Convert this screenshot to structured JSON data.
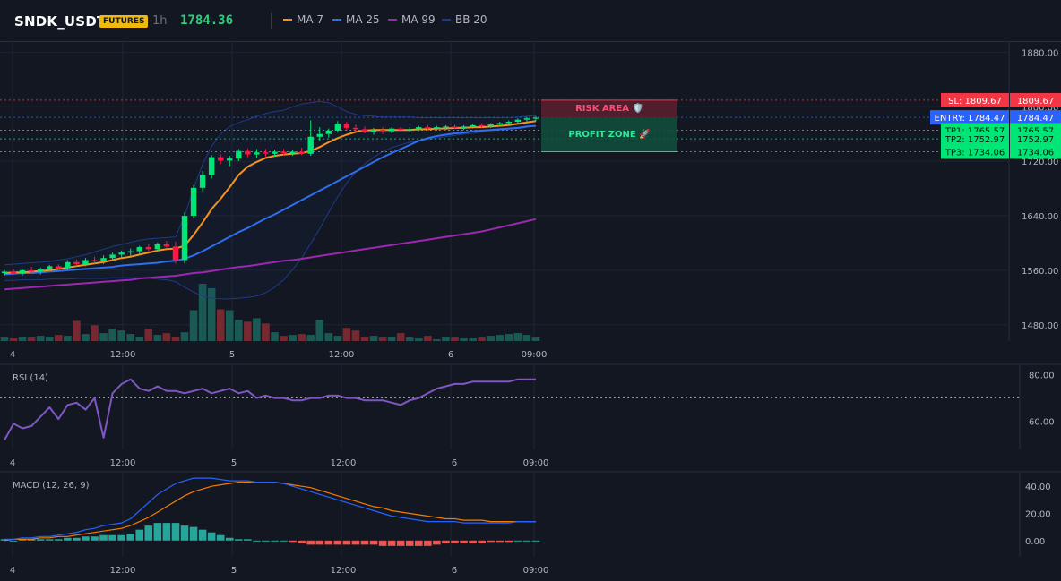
{
  "header": {
    "symbol": "SNDK_USDT",
    "badge": "FUTURES",
    "interval": "1h",
    "last_price": "1784.36",
    "legend": [
      {
        "label": "MA 7",
        "color": "#f7931a"
      },
      {
        "label": "MA 25",
        "color": "#2f6fed"
      },
      {
        "label": "MA 99",
        "color": "#9c27b0"
      },
      {
        "label": "BB 20",
        "color": "#1e3a8a"
      }
    ]
  },
  "zones": {
    "risk": "RISK AREA 🛡️",
    "profit": "PROFIT ZONE 🚀"
  },
  "levels": [
    {
      "key": "sl",
      "label": "SL: 1809.67",
      "value": 1809.67,
      "value_label": "1809.67",
      "color": "#f23645",
      "text": "#ffffff"
    },
    {
      "key": "entry",
      "label": "ENTRY: 1784.47",
      "value": 1784.47,
      "value_label": "1784.47",
      "color": "#2962ff",
      "text": "#ffffff"
    },
    {
      "key": "tp1",
      "label": "TP1: 1765.57",
      "value": 1765.57,
      "value_label": "1765.57",
      "color": "#00e676",
      "text": "#0b1a10"
    },
    {
      "key": "tp2",
      "label": "TP2: 1752.97",
      "value": 1752.97,
      "value_label": "1752.97",
      "color": "#00e676",
      "text": "#0b1a10"
    },
    {
      "key": "tp3",
      "label": "TP3: 1734.06",
      "value": 1734.06,
      "value_label": "1734.06",
      "color": "#00e676",
      "text": "#0b1a10"
    }
  ],
  "colors": {
    "up": "#26a69a",
    "down": "#ef5350",
    "up_bright": "#00e676",
    "down_bright": "#ff1744",
    "rsi": "#7e57c2",
    "macd": "#2962ff",
    "signal": "#f57c00"
  },
  "chart_data": [
    {
      "type": "candlestick",
      "name": "price",
      "x_ticks": [
        "4",
        "12:00",
        "5",
        "12:00",
        "6",
        "09:00"
      ],
      "y_ticks": [
        "1880.00",
        "1800.00",
        "1720.00",
        "1640.00",
        "1560.00",
        "1480.00"
      ],
      "ylim": [
        1460,
        1895
      ],
      "candles": [
        [
          1556,
          1560,
          1552,
          1558
        ],
        [
          1558,
          1562,
          1553,
          1555
        ],
        [
          1555,
          1562,
          1552,
          1560
        ],
        [
          1560,
          1565,
          1556,
          1558
        ],
        [
          1558,
          1564,
          1554,
          1562
        ],
        [
          1562,
          1568,
          1559,
          1566
        ],
        [
          1566,
          1569,
          1560,
          1563
        ],
        [
          1563,
          1575,
          1561,
          1572
        ],
        [
          1572,
          1576,
          1566,
          1569
        ],
        [
          1569,
          1578,
          1566,
          1575
        ],
        [
          1575,
          1580,
          1570,
          1573
        ],
        [
          1573,
          1582,
          1569,
          1578
        ],
        [
          1578,
          1586,
          1574,
          1583
        ],
        [
          1583,
          1589,
          1578,
          1586
        ],
        [
          1586,
          1592,
          1580,
          1588
        ],
        [
          1588,
          1596,
          1583,
          1594
        ],
        [
          1594,
          1598,
          1587,
          1591
        ],
        [
          1591,
          1601,
          1588,
          1598
        ],
        [
          1598,
          1603,
          1592,
          1595
        ],
        [
          1595,
          1602,
          1570,
          1575
        ],
        [
          1575,
          1645,
          1570,
          1640
        ],
        [
          1640,
          1685,
          1636,
          1681
        ],
        [
          1681,
          1706,
          1676,
          1700
        ],
        [
          1700,
          1729,
          1695,
          1726
        ],
        [
          1726,
          1730,
          1716,
          1721
        ],
        [
          1721,
          1728,
          1713,
          1724
        ],
        [
          1724,
          1738,
          1720,
          1735
        ],
        [
          1735,
          1739,
          1726,
          1730
        ],
        [
          1730,
          1738,
          1725,
          1733
        ],
        [
          1733,
          1738,
          1727,
          1731
        ],
        [
          1731,
          1737,
          1727,
          1734
        ],
        [
          1734,
          1738,
          1729,
          1732
        ],
        [
          1732,
          1736,
          1728,
          1734
        ],
        [
          1734,
          1740,
          1729,
          1731
        ],
        [
          1731,
          1780,
          1728,
          1756
        ],
        [
          1756,
          1770,
          1750,
          1760
        ],
        [
          1760,
          1768,
          1755,
          1765
        ],
        [
          1765,
          1779,
          1762,
          1775
        ],
        [
          1775,
          1778,
          1765,
          1769
        ],
        [
          1769,
          1774,
          1764,
          1767
        ],
        [
          1767,
          1771,
          1761,
          1763
        ],
        [
          1763,
          1769,
          1759,
          1766
        ],
        [
          1766,
          1770,
          1760,
          1764
        ],
        [
          1764,
          1770,
          1761,
          1768
        ],
        [
          1768,
          1771,
          1763,
          1766
        ],
        [
          1766,
          1770,
          1762,
          1767
        ],
        [
          1767,
          1772,
          1764,
          1770
        ],
        [
          1770,
          1773,
          1765,
          1768
        ],
        [
          1768,
          1772,
          1765,
          1770
        ],
        [
          1770,
          1773,
          1766,
          1771
        ],
        [
          1771,
          1774,
          1767,
          1769
        ],
        [
          1769,
          1773,
          1766,
          1771
        ],
        [
          1771,
          1775,
          1768,
          1773
        ],
        [
          1773,
          1776,
          1769,
          1772
        ],
        [
          1772,
          1776,
          1769,
          1774
        ],
        [
          1774,
          1778,
          1771,
          1776
        ],
        [
          1776,
          1780,
          1772,
          1778
        ],
        [
          1778,
          1783,
          1775,
          1781
        ],
        [
          1781,
          1785,
          1777,
          1783
        ],
        [
          1783,
          1786,
          1779,
          1784
        ]
      ],
      "volume": [
        4,
        3,
        5,
        4,
        6,
        5,
        7,
        6,
        23,
        8,
        18,
        9,
        14,
        12,
        8,
        5,
        14,
        7,
        9,
        5,
        10,
        35,
        65,
        60,
        36,
        35,
        24,
        22,
        26,
        20,
        10,
        6,
        7,
        8,
        7,
        24,
        9,
        6,
        15,
        12,
        5,
        6,
        4,
        5,
        9,
        4,
        3,
        6,
        2,
        5,
        4,
        3,
        3,
        4,
        6,
        7,
        8,
        9,
        7,
        4
      ],
      "ma7": [
        1556,
        1557,
        1557,
        1558,
        1559,
        1560,
        1562,
        1564,
        1566,
        1568,
        1570,
        1572,
        1575,
        1578,
        1580,
        1583,
        1586,
        1589,
        1591,
        1592,
        1596,
        1612,
        1630,
        1650,
        1665,
        1682,
        1700,
        1712,
        1719,
        1725,
        1728,
        1730,
        1731,
        1732,
        1735,
        1741,
        1748,
        1754,
        1759,
        1763,
        1765,
        1766,
        1766,
        1766,
        1766,
        1766,
        1767,
        1767,
        1768,
        1768,
        1769,
        1769,
        1770,
        1770,
        1771,
        1772,
        1773,
        1775,
        1777,
        1779
      ],
      "ma25": [
        1554,
        1555,
        1556,
        1556,
        1557,
        1558,
        1559,
        1560,
        1561,
        1562,
        1563,
        1564,
        1565,
        1567,
        1568,
        1569,
        1570,
        1571,
        1573,
        1574,
        1577,
        1582,
        1588,
        1595,
        1602,
        1609,
        1616,
        1622,
        1629,
        1636,
        1642,
        1649,
        1656,
        1663,
        1670,
        1677,
        1684,
        1691,
        1698,
        1705,
        1712,
        1719,
        1726,
        1732,
        1738,
        1744,
        1750,
        1754,
        1757,
        1759,
        1761,
        1762,
        1764,
        1765,
        1766,
        1767,
        1768,
        1769,
        1771,
        1772
      ],
      "ma99": [
        1532,
        1533,
        1534,
        1535,
        1536,
        1537,
        1538,
        1539,
        1540,
        1541,
        1542,
        1543,
        1544,
        1545,
        1546,
        1548,
        1549,
        1550,
        1551,
        1552,
        1554,
        1556,
        1557,
        1559,
        1561,
        1563,
        1565,
        1566,
        1568,
        1570,
        1572,
        1574,
        1575,
        1577,
        1579,
        1581,
        1583,
        1585,
        1587,
        1589,
        1591,
        1593,
        1595,
        1597,
        1599,
        1601,
        1603,
        1605,
        1607,
        1609,
        1611,
        1613,
        1615,
        1617,
        1620,
        1623,
        1626,
        1629,
        1632,
        1635
      ],
      "bb_upper": [
        1568,
        1569,
        1570,
        1571,
        1572,
        1573,
        1575,
        1577,
        1580,
        1583,
        1587,
        1591,
        1595,
        1598,
        1601,
        1604,
        1606,
        1607,
        1608,
        1609,
        1640,
        1680,
        1716,
        1742,
        1760,
        1771,
        1777,
        1781,
        1786,
        1790,
        1793,
        1795,
        1800,
        1804,
        1806,
        1808,
        1806,
        1800,
        1793,
        1789,
        1787,
        1786,
        1785,
        1785,
        1785,
        1785,
        1784,
        1784,
        1784,
        1784,
        1784,
        1784,
        1784,
        1784,
        1784,
        1784,
        1784,
        1785,
        1786,
        1787
      ],
      "bb_lower": [
        1545,
        1545,
        1546,
        1546,
        1546,
        1547,
        1547,
        1547,
        1548,
        1548,
        1548,
        1548,
        1549,
        1549,
        1549,
        1549,
        1548,
        1547,
        1546,
        1543,
        1535,
        1528,
        1522,
        1519,
        1518,
        1518,
        1519,
        1520,
        1522,
        1527,
        1535,
        1546,
        1561,
        1578,
        1599,
        1621,
        1645,
        1668,
        1688,
        1704,
        1716,
        1726,
        1734,
        1740,
        1744,
        1748,
        1750,
        1752,
        1754,
        1756,
        1758,
        1760,
        1761,
        1763,
        1765,
        1766,
        1767,
        1768,
        1770,
        1772
      ]
    },
    {
      "type": "line",
      "name": "RSI (14)",
      "y_ticks": [
        "80.00",
        "60.00"
      ],
      "ylim": [
        48,
        84
      ],
      "reference_line": 70,
      "values": [
        52,
        59,
        57,
        58,
        62,
        66,
        61,
        67,
        68,
        65,
        70,
        53,
        72,
        76,
        78,
        74,
        73,
        75,
        73,
        73,
        72,
        73,
        74,
        72,
        73,
        74,
        72,
        73,
        70,
        71,
        70,
        70,
        69,
        69,
        70,
        70,
        71,
        71,
        70,
        70,
        69,
        69,
        69,
        68,
        67,
        69,
        70,
        72,
        74,
        75,
        76,
        76,
        77,
        77,
        77,
        77,
        77,
        78,
        78,
        78
      ],
      "x_ticks": [
        "4",
        "12:00",
        "5",
        "12:00",
        "6",
        "09:00"
      ]
    },
    {
      "type": "bar+line",
      "name": "MACD (12, 26, 9)",
      "y_ticks": [
        "40.00",
        "20.00",
        "0.00"
      ],
      "ylim": [
        -12,
        50
      ],
      "macd": [
        1,
        1,
        2,
        2,
        3,
        3,
        4,
        5,
        6,
        8,
        9,
        11,
        12,
        13,
        16,
        22,
        28,
        34,
        38,
        42,
        44,
        46,
        46,
        46,
        45,
        44,
        44,
        44,
        43,
        43,
        43,
        42,
        40,
        38,
        36,
        34,
        32,
        30,
        28,
        26,
        24,
        22,
        20,
        18,
        17,
        16,
        15,
        14,
        14,
        14,
        14,
        13,
        13,
        13,
        13,
        13,
        13,
        14,
        14,
        14
      ],
      "signal": [
        0,
        1,
        1,
        1,
        2,
        2,
        3,
        3,
        4,
        5,
        6,
        7,
        8,
        9,
        11,
        14,
        17,
        21,
        25,
        29,
        33,
        36,
        38,
        40,
        41,
        42,
        43,
        43,
        43,
        43,
        43,
        42,
        41,
        40,
        39,
        37,
        35,
        33,
        31,
        29,
        27,
        25,
        24,
        22,
        21,
        20,
        19,
        18,
        17,
        16,
        16,
        15,
        15,
        15,
        14,
        14,
        14,
        14,
        14,
        14
      ],
      "histogram": [
        1,
        0,
        1,
        1,
        1,
        1,
        1,
        2,
        2,
        3,
        3,
        4,
        4,
        4,
        5,
        8,
        11,
        13,
        13,
        13,
        11,
        10,
        8,
        6,
        4,
        2,
        1,
        1,
        0,
        0,
        0,
        0,
        -1,
        -2,
        -3,
        -3,
        -3,
        -3,
        -3,
        -3,
        -3,
        -3,
        -4,
        -4,
        -4,
        -4,
        -4,
        -4,
        -3,
        -2,
        -2,
        -2,
        -2,
        -2,
        -1,
        -1,
        -1,
        0,
        0,
        0
      ],
      "x_ticks": [
        "4",
        "12:00",
        "5",
        "12:00",
        "6",
        "09:00"
      ]
    }
  ]
}
